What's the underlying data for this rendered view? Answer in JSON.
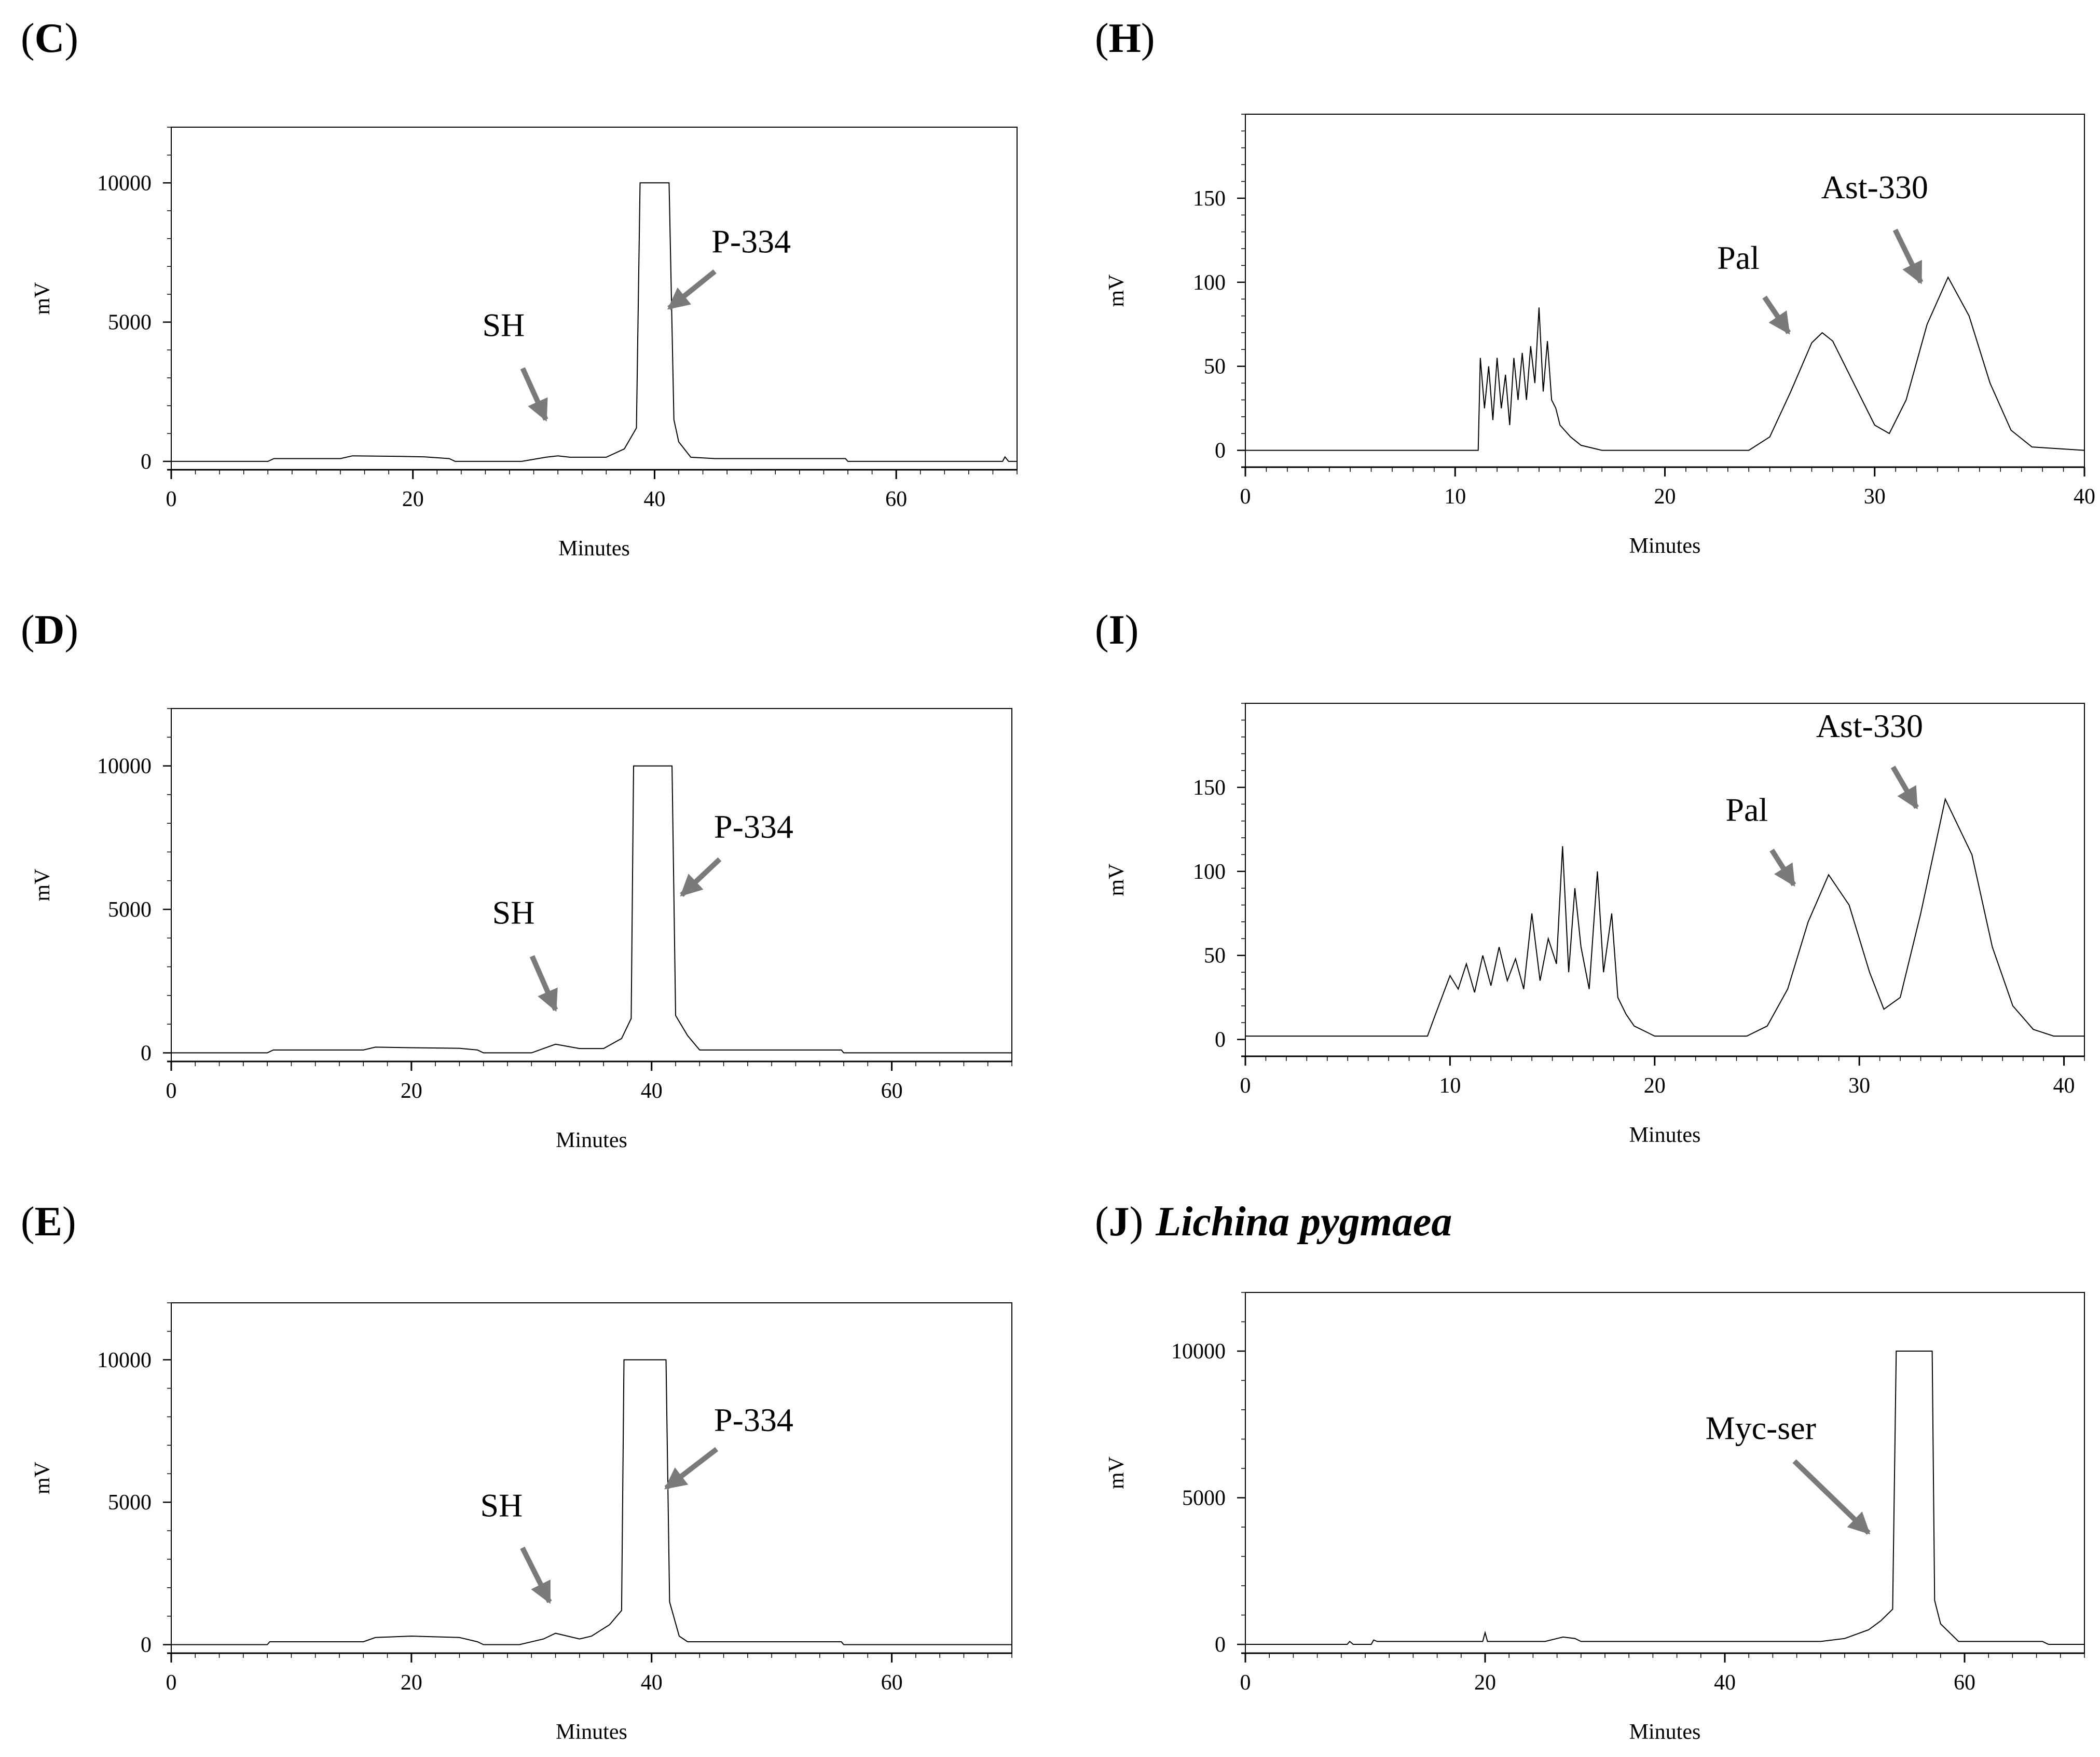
{
  "chart_data": [
    {
      "id": "C",
      "type": "line",
      "label_letter": "C",
      "title": "",
      "xlabel": "Minutes",
      "ylabel": "mV",
      "xlim": [
        0,
        70
      ],
      "ylim": [
        -300,
        12000
      ],
      "xticks": [
        0,
        20,
        40,
        60
      ],
      "yticks": [
        0,
        5000,
        10000
      ],
      "series": [
        {
          "name": "trace C",
          "x": [
            0,
            8,
            8.5,
            14,
            15,
            19,
            21,
            23,
            23.5,
            29,
            31,
            32,
            33,
            36,
            37.5,
            38.5,
            38.8,
            39.2,
            41.2,
            41.6,
            42,
            43,
            45,
            55.8,
            56,
            68.8,
            69,
            69.3,
            70
          ],
          "y": [
            0,
            0,
            100,
            100,
            200,
            180,
            160,
            100,
            0,
            0,
            150,
            200,
            150,
            150,
            450,
            1200,
            10000,
            10000,
            10000,
            1500,
            700,
            150,
            100,
            100,
            0,
            0,
            160,
            0,
            0
          ]
        }
      ],
      "annotations": [
        {
          "text": "P-334",
          "tip_x": 41.2,
          "tip_y": 5500,
          "text_x": 48,
          "text_y": 7500
        },
        {
          "text": "SH",
          "tip_x": 31,
          "tip_y": 1500,
          "text_x": 27.5,
          "text_y": 4500
        }
      ]
    },
    {
      "id": "D",
      "type": "line",
      "label_letter": "D",
      "title": "",
      "xlabel": "Minutes",
      "ylabel": "mV",
      "xlim": [
        0,
        70
      ],
      "ylim": [
        -300,
        12000
      ],
      "xticks": [
        0,
        20,
        40,
        60
      ],
      "yticks": [
        0,
        5000,
        10000
      ],
      "series": [
        {
          "name": "trace D",
          "x": [
            0,
            8,
            8.5,
            16,
            17,
            20,
            24,
            25.5,
            26,
            30,
            31,
            32,
            34,
            36,
            37.5,
            38.3,
            38.5,
            38.9,
            41.7,
            42,
            43,
            44,
            55.8,
            56,
            70
          ],
          "y": [
            0,
            0,
            100,
            100,
            200,
            180,
            160,
            100,
            0,
            0,
            150,
            300,
            150,
            150,
            500,
            1200,
            10000,
            10000,
            10000,
            1300,
            600,
            100,
            100,
            0,
            0
          ]
        }
      ],
      "annotations": [
        {
          "text": "P-334",
          "tip_x": 42.5,
          "tip_y": 5500,
          "text_x": 48.5,
          "text_y": 7500
        },
        {
          "text": "SH",
          "tip_x": 32,
          "tip_y": 1500,
          "text_x": 28.5,
          "text_y": 4500
        }
      ]
    },
    {
      "id": "E",
      "type": "line",
      "label_letter": "E",
      "title": "",
      "xlabel": "Minutes",
      "ylabel": "mV",
      "xlim": [
        0,
        70
      ],
      "ylim": [
        -300,
        12000
      ],
      "xticks": [
        0,
        20,
        40,
        60
      ],
      "yticks": [
        0,
        5000,
        10000
      ],
      "series": [
        {
          "name": "trace E",
          "x": [
            0,
            8,
            8.2,
            16,
            17,
            20,
            24,
            25.5,
            26,
            29,
            31,
            32,
            34,
            35,
            36.5,
            37.5,
            37.7,
            38,
            41.2,
            41.5,
            42.3,
            43,
            55.8,
            56,
            70
          ],
          "y": [
            0,
            0,
            100,
            100,
            250,
            300,
            250,
            100,
            0,
            0,
            200,
            400,
            200,
            300,
            700,
            1200,
            10000,
            10000,
            10000,
            1500,
            300,
            100,
            100,
            0,
            0
          ]
        }
      ],
      "annotations": [
        {
          "text": "P-334",
          "tip_x": 41.2,
          "tip_y": 5500,
          "text_x": 48.5,
          "text_y": 7500
        },
        {
          "text": "SH",
          "tip_x": 31.5,
          "tip_y": 1500,
          "text_x": 27.5,
          "text_y": 4500
        }
      ]
    },
    {
      "id": "H",
      "type": "line",
      "label_letter": "H",
      "title": "",
      "xlabel": "Minutes",
      "ylabel": "mV",
      "xlim": [
        0,
        40
      ],
      "ylim": [
        -10,
        200
      ],
      "xticks": [
        0,
        10,
        20,
        30,
        40
      ],
      "yticks": [
        0,
        50,
        100,
        150
      ],
      "series": [
        {
          "name": "trace H",
          "x": [
            0,
            11.1,
            11.2,
            11.4,
            11.6,
            11.8,
            12,
            12.2,
            12.4,
            12.6,
            12.8,
            13,
            13.2,
            13.4,
            13.6,
            13.8,
            14,
            14.2,
            14.4,
            14.6,
            14.8,
            15,
            15.5,
            16,
            17,
            24,
            25,
            26,
            27,
            27.5,
            28,
            29,
            30,
            30.7,
            31.5,
            32.5,
            33.5,
            34.5,
            35.5,
            36.5,
            37.5,
            40
          ],
          "y": [
            0,
            0,
            55,
            25,
            50,
            18,
            55,
            25,
            45,
            15,
            55,
            30,
            58,
            30,
            62,
            40,
            85,
            35,
            65,
            30,
            25,
            15,
            8,
            3,
            0,
            0,
            8,
            35,
            64,
            70,
            65,
            40,
            15,
            10,
            30,
            75,
            103,
            80,
            40,
            12,
            2,
            0
          ]
        }
      ],
      "annotations": [
        {
          "text": "Pal",
          "tip_x": 25.9,
          "tip_y": 70,
          "text_x": 23.5,
          "text_y": 108
        },
        {
          "text": "Ast-330",
          "tip_x": 32.2,
          "tip_y": 100,
          "text_x": 30,
          "text_y": 150
        }
      ]
    },
    {
      "id": "I",
      "type": "line",
      "label_letter": "I",
      "title": "",
      "xlabel": "Minutes",
      "ylabel": "mV",
      "xlim": [
        0,
        41
      ],
      "ylim": [
        -10,
        200
      ],
      "xticks": [
        0,
        10,
        20,
        30,
        40
      ],
      "yticks": [
        0,
        50,
        100,
        150
      ],
      "series": [
        {
          "name": "trace I",
          "x": [
            0,
            8.9,
            9.2,
            9.6,
            10,
            10.4,
            10.8,
            11.2,
            11.6,
            12,
            12.4,
            12.8,
            13.2,
            13.6,
            14,
            14.4,
            14.8,
            15.2,
            15.5,
            15.8,
            16.1,
            16.4,
            16.8,
            17.2,
            17.5,
            17.9,
            18.2,
            18.6,
            19,
            19.5,
            20,
            20.5,
            24.5,
            25.5,
            26.5,
            27.5,
            28.5,
            29.5,
            30.5,
            31.2,
            32,
            33,
            34.2,
            35.5,
            36.5,
            37.5,
            38.5,
            39.5,
            41
          ],
          "y": [
            2,
            2,
            12,
            25,
            38,
            30,
            45,
            28,
            50,
            32,
            55,
            35,
            48,
            30,
            75,
            35,
            60,
            45,
            115,
            40,
            90,
            55,
            30,
            100,
            40,
            75,
            25,
            15,
            8,
            5,
            2,
            2,
            2,
            8,
            30,
            70,
            98,
            80,
            40,
            18,
            25,
            75,
            143,
            110,
            55,
            20,
            6,
            2,
            2
          ]
        }
      ],
      "annotations": [
        {
          "text": "Pal",
          "tip_x": 26.8,
          "tip_y": 92,
          "text_x": 24.5,
          "text_y": 130
        },
        {
          "text": "Ast-330",
          "tip_x": 32.8,
          "tip_y": 138,
          "text_x": 30.5,
          "text_y": 180
        }
      ]
    },
    {
      "id": "J",
      "type": "line",
      "label_letter": "J",
      "title": "Lichina pygmaea",
      "xlabel": "Minutes",
      "ylabel": "mV",
      "xlim": [
        0,
        70
      ],
      "ylim": [
        -300,
        12000
      ],
      "xticks": [
        0,
        20,
        40,
        60
      ],
      "yticks": [
        0,
        5000,
        10000
      ],
      "series": [
        {
          "name": "trace J",
          "x": [
            0,
            8.5,
            8.7,
            9,
            10.5,
            10.7,
            11,
            19.8,
            20,
            20.2,
            20.4,
            21,
            25,
            26,
            26.5,
            27.5,
            28,
            48,
            50,
            52,
            53,
            54,
            54.3,
            54.5,
            57.3,
            57.5,
            58,
            59.5,
            66.5,
            67,
            70
          ],
          "y": [
            0,
            0,
            100,
            0,
            0,
            150,
            100,
            100,
            400,
            100,
            100,
            100,
            100,
            200,
            250,
            200,
            100,
            100,
            200,
            500,
            800,
            1200,
            10000,
            10000,
            10000,
            1500,
            700,
            100,
            100,
            0,
            0
          ]
        }
      ],
      "annotations": [
        {
          "text": "Myc-ser",
          "tip_x": 52,
          "tip_y": 3800,
          "text_x": 43,
          "text_y": 7000
        }
      ]
    }
  ]
}
